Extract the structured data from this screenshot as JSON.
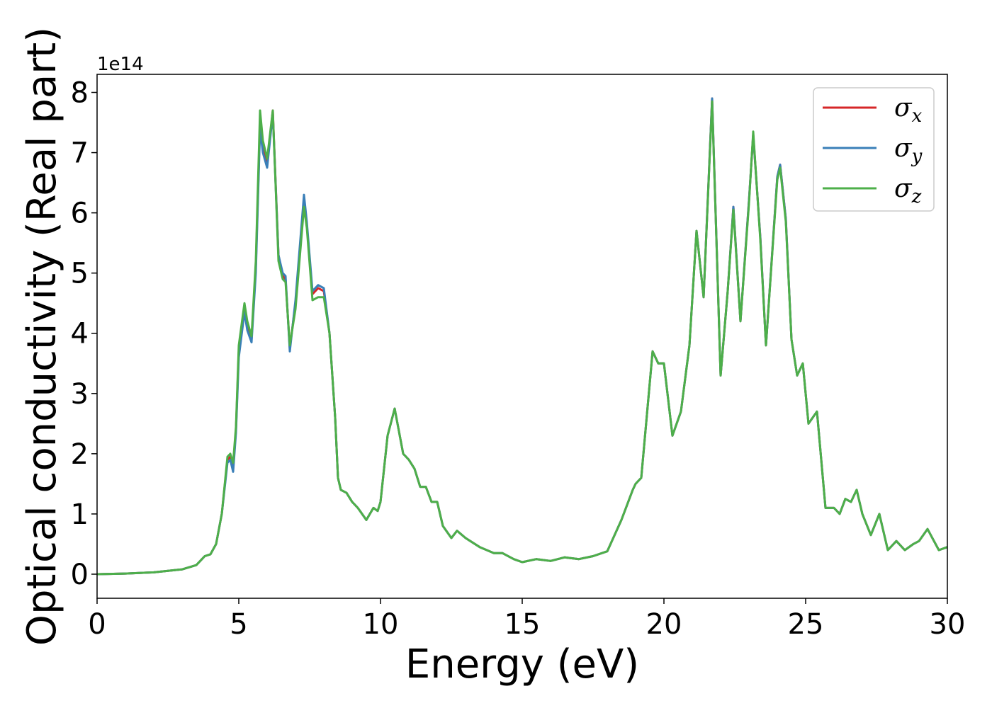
{
  "chart_data": {
    "type": "line",
    "title": "",
    "xlabel": "Energy (eV)",
    "ylabel": "Optical conductivity (Real part)",
    "y_offset_label": "1e14",
    "xlim": [
      0,
      30
    ],
    "ylim": [
      -0.4,
      8.3
    ],
    "xticks": [
      0,
      5,
      10,
      15,
      20,
      25,
      30
    ],
    "yticks": [
      0,
      1,
      2,
      3,
      4,
      5,
      6,
      7,
      8
    ],
    "grid": false,
    "legend_position": "top-right",
    "series": [
      {
        "name": "σx",
        "symbol": "σ",
        "subscript": "x",
        "color": "#d62728",
        "x": [
          0,
          1,
          2,
          3,
          3.5,
          3.8,
          4.0,
          4.2,
          4.4,
          4.6,
          4.7,
          4.8,
          4.9,
          5.0,
          5.2,
          5.3,
          5.45,
          5.6,
          5.75,
          5.85,
          6.0,
          6.2,
          6.4,
          6.55,
          6.65,
          6.8,
          7.0,
          7.3,
          7.4,
          7.6,
          7.8,
          8.0,
          8.2,
          8.4,
          8.5,
          8.6,
          8.8,
          9.0,
          9.2,
          9.5,
          9.75,
          9.9,
          10.0,
          10.25,
          10.5,
          10.8,
          11.0,
          11.2,
          11.4,
          11.6,
          11.8,
          12.0,
          12.2,
          12.5,
          12.7,
          13.0,
          13.5,
          14.0,
          14.3,
          14.7,
          15.0,
          15.5,
          16.0,
          16.5,
          17.0,
          17.5,
          18.0,
          18.5,
          18.9,
          19.0,
          19.2,
          19.6,
          19.8,
          20.0,
          20.3,
          20.6,
          20.9,
          21.15,
          21.4,
          21.7,
          22.0,
          22.25,
          22.45,
          22.7,
          23.0,
          23.15,
          23.4,
          23.6,
          24.0,
          24.1,
          24.3,
          24.5,
          24.7,
          24.9,
          25.1,
          25.4,
          25.7,
          26.0,
          26.2,
          26.4,
          26.6,
          26.8,
          27.0,
          27.3,
          27.6,
          27.9,
          28.2,
          28.5,
          28.8,
          29.0,
          29.3,
          29.7,
          30.0
        ],
        "values": [
          0,
          0.01,
          0.03,
          0.08,
          0.15,
          0.3,
          0.33,
          0.5,
          1.0,
          1.9,
          1.95,
          1.75,
          2.4,
          3.7,
          4.4,
          4.1,
          3.9,
          5.1,
          7.5,
          7.1,
          6.8,
          7.7,
          5.3,
          4.95,
          4.9,
          3.75,
          4.5,
          6.2,
          5.8,
          4.65,
          4.75,
          4.7,
          4.0,
          2.6,
          1.6,
          1.4,
          1.35,
          1.2,
          1.1,
          0.9,
          1.1,
          1.05,
          1.2,
          2.3,
          2.75,
          2.0,
          1.9,
          1.75,
          1.45,
          1.45,
          1.2,
          1.2,
          0.8,
          0.6,
          0.72,
          0.6,
          0.45,
          0.35,
          0.35,
          0.25,
          0.2,
          0.25,
          0.22,
          0.28,
          0.25,
          0.3,
          0.38,
          0.9,
          1.4,
          1.5,
          1.6,
          3.7,
          3.5,
          3.5,
          2.3,
          2.7,
          3.8,
          5.7,
          4.6,
          7.9,
          3.3,
          4.7,
          6.1,
          4.2,
          6.2,
          7.3,
          5.6,
          3.8,
          6.6,
          6.8,
          5.9,
          3.9,
          3.3,
          3.5,
          2.5,
          2.7,
          1.1,
          1.1,
          1.0,
          1.25,
          1.2,
          1.4,
          1.0,
          0.65,
          1.0,
          0.4,
          0.55,
          0.4,
          0.5,
          0.55,
          0.75,
          0.4,
          0.45
        ]
      },
      {
        "name": "σy",
        "symbol": "σ",
        "subscript": "y",
        "color": "#3a7fb8",
        "x": [
          0,
          1,
          2,
          3,
          3.5,
          3.8,
          4.0,
          4.2,
          4.4,
          4.6,
          4.7,
          4.8,
          4.9,
          5.0,
          5.2,
          5.3,
          5.45,
          5.6,
          5.75,
          5.85,
          6.0,
          6.2,
          6.4,
          6.55,
          6.65,
          6.8,
          7.0,
          7.3,
          7.4,
          7.6,
          7.8,
          8.0,
          8.2,
          8.4,
          8.5,
          8.6,
          8.8,
          9.0,
          9.2,
          9.5,
          9.75,
          9.9,
          10.0,
          10.25,
          10.5,
          10.8,
          11.0,
          11.2,
          11.4,
          11.6,
          11.8,
          12.0,
          12.2,
          12.5,
          12.7,
          13.0,
          13.5,
          14.0,
          14.3,
          14.7,
          15.0,
          15.5,
          16.0,
          16.5,
          17.0,
          17.5,
          18.0,
          18.5,
          18.9,
          19.0,
          19.2,
          19.6,
          19.8,
          20.0,
          20.3,
          20.6,
          20.9,
          21.15,
          21.4,
          21.7,
          22.0,
          22.25,
          22.45,
          22.7,
          23.0,
          23.15,
          23.4,
          23.6,
          24.0,
          24.1,
          24.3,
          24.5,
          24.7,
          24.9,
          25.1,
          25.4,
          25.7,
          26.0,
          26.2,
          26.4,
          26.6,
          26.8,
          27.0,
          27.3,
          27.6,
          27.9,
          28.2,
          28.5,
          28.8,
          29.0,
          29.3,
          29.7,
          30.0
        ],
        "values": [
          0,
          0.01,
          0.03,
          0.08,
          0.15,
          0.3,
          0.33,
          0.5,
          1.0,
          1.85,
          1.9,
          1.7,
          2.35,
          3.6,
          4.35,
          4.05,
          3.85,
          5.0,
          7.4,
          7.0,
          6.75,
          7.65,
          5.3,
          5.0,
          4.95,
          3.7,
          4.55,
          6.3,
          5.85,
          4.7,
          4.8,
          4.75,
          4.0,
          2.6,
          1.6,
          1.4,
          1.35,
          1.2,
          1.1,
          0.9,
          1.1,
          1.05,
          1.2,
          2.3,
          2.75,
          2.0,
          1.9,
          1.75,
          1.45,
          1.45,
          1.2,
          1.2,
          0.8,
          0.6,
          0.72,
          0.6,
          0.45,
          0.35,
          0.35,
          0.25,
          0.2,
          0.25,
          0.22,
          0.28,
          0.25,
          0.3,
          0.38,
          0.9,
          1.4,
          1.5,
          1.6,
          3.7,
          3.5,
          3.5,
          2.3,
          2.7,
          3.8,
          5.7,
          4.6,
          7.9,
          3.3,
          4.7,
          6.1,
          4.2,
          6.2,
          7.3,
          5.6,
          3.8,
          6.6,
          6.8,
          5.9,
          3.9,
          3.3,
          3.5,
          2.5,
          2.7,
          1.1,
          1.1,
          1.0,
          1.25,
          1.2,
          1.4,
          1.0,
          0.65,
          1.0,
          0.4,
          0.55,
          0.4,
          0.5,
          0.55,
          0.75,
          0.4,
          0.45
        ]
      },
      {
        "name": "σz",
        "symbol": "σ",
        "subscript": "z",
        "color": "#4daf4a",
        "x": [
          0,
          1,
          2,
          3,
          3.5,
          3.8,
          4.0,
          4.2,
          4.4,
          4.6,
          4.7,
          4.8,
          4.9,
          5.0,
          5.2,
          5.3,
          5.45,
          5.6,
          5.75,
          5.85,
          6.0,
          6.2,
          6.4,
          6.55,
          6.65,
          6.8,
          7.0,
          7.3,
          7.4,
          7.6,
          7.8,
          8.0,
          8.2,
          8.4,
          8.5,
          8.6,
          8.8,
          9.0,
          9.2,
          9.5,
          9.75,
          9.9,
          10.0,
          10.25,
          10.5,
          10.8,
          11.0,
          11.2,
          11.4,
          11.6,
          11.8,
          12.0,
          12.2,
          12.5,
          12.7,
          13.0,
          13.5,
          14.0,
          14.3,
          14.7,
          15.0,
          15.5,
          16.0,
          16.5,
          17.0,
          17.5,
          18.0,
          18.5,
          18.9,
          19.0,
          19.2,
          19.6,
          19.8,
          20.0,
          20.3,
          20.6,
          20.9,
          21.15,
          21.4,
          21.7,
          22.0,
          22.25,
          22.45,
          22.7,
          23.0,
          23.15,
          23.4,
          23.6,
          24.0,
          24.1,
          24.3,
          24.5,
          24.7,
          24.9,
          25.1,
          25.4,
          25.7,
          26.0,
          26.2,
          26.4,
          26.6,
          26.8,
          27.0,
          27.3,
          27.6,
          27.9,
          28.2,
          28.5,
          28.8,
          29.0,
          29.3,
          29.7,
          30.0
        ],
        "values": [
          0,
          0.01,
          0.03,
          0.08,
          0.15,
          0.3,
          0.33,
          0.5,
          1.0,
          1.95,
          2.0,
          1.85,
          2.45,
          3.8,
          4.5,
          4.2,
          3.95,
          5.2,
          7.7,
          7.2,
          6.9,
          7.7,
          5.2,
          4.9,
          4.85,
          3.8,
          4.4,
          6.1,
          5.75,
          4.55,
          4.6,
          4.6,
          4.0,
          2.6,
          1.6,
          1.4,
          1.35,
          1.2,
          1.1,
          0.9,
          1.1,
          1.05,
          1.2,
          2.3,
          2.75,
          2.0,
          1.9,
          1.75,
          1.45,
          1.45,
          1.2,
          1.2,
          0.8,
          0.6,
          0.72,
          0.6,
          0.45,
          0.35,
          0.35,
          0.25,
          0.2,
          0.25,
          0.22,
          0.28,
          0.25,
          0.3,
          0.38,
          0.9,
          1.4,
          1.5,
          1.6,
          3.7,
          3.5,
          3.5,
          2.3,
          2.7,
          3.8,
          5.7,
          4.6,
          7.85,
          3.3,
          4.7,
          6.05,
          4.2,
          6.15,
          7.35,
          5.55,
          3.8,
          6.55,
          6.75,
          5.85,
          3.9,
          3.3,
          3.5,
          2.5,
          2.7,
          1.1,
          1.1,
          1.0,
          1.25,
          1.2,
          1.4,
          1.0,
          0.65,
          1.0,
          0.4,
          0.55,
          0.4,
          0.5,
          0.55,
          0.75,
          0.4,
          0.45
        ]
      }
    ]
  }
}
